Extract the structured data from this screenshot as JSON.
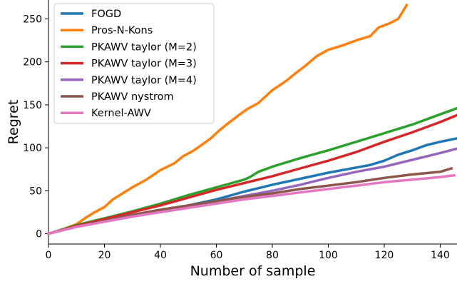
{
  "chart_data": {
    "type": "line",
    "xlabel": "Number of sample",
    "ylabel": "Regret",
    "xlim": [
      0,
      146
    ],
    "ylim": [
      -12,
      272
    ],
    "xticks": [
      0,
      20,
      40,
      60,
      80,
      100,
      120,
      140
    ],
    "yticks": [
      0,
      50,
      100,
      150,
      200,
      250
    ],
    "grid": false,
    "legend_position": "top-left",
    "series": [
      {
        "name": "FOGD",
        "color": "#1f77b4",
        "points": [
          [
            0,
            0
          ],
          [
            10,
            9
          ],
          [
            20,
            15
          ],
          [
            30,
            21
          ],
          [
            40,
            27
          ],
          [
            50,
            33
          ],
          [
            60,
            40
          ],
          [
            70,
            49
          ],
          [
            80,
            57
          ],
          [
            90,
            64
          ],
          [
            100,
            71
          ],
          [
            110,
            77
          ],
          [
            115,
            80
          ],
          [
            120,
            85
          ],
          [
            125,
            92
          ],
          [
            130,
            97
          ],
          [
            135,
            103
          ],
          [
            140,
            107
          ],
          [
            146,
            111
          ]
        ]
      },
      {
        "name": "Pros-N-Kons",
        "color": "#ff7f0e",
        "points": [
          [
            0,
            0
          ],
          [
            5,
            5
          ],
          [
            10,
            11
          ],
          [
            13,
            18
          ],
          [
            16,
            24
          ],
          [
            20,
            31
          ],
          [
            23,
            40
          ],
          [
            27,
            48
          ],
          [
            30,
            54
          ],
          [
            35,
            63
          ],
          [
            40,
            74
          ],
          [
            45,
            82
          ],
          [
            48,
            90
          ],
          [
            52,
            97
          ],
          [
            55,
            104
          ],
          [
            58,
            111
          ],
          [
            61,
            120
          ],
          [
            64,
            128
          ],
          [
            68,
            138
          ],
          [
            71,
            145
          ],
          [
            75,
            152
          ],
          [
            80,
            167
          ],
          [
            85,
            178
          ],
          [
            88,
            186
          ],
          [
            92,
            196
          ],
          [
            96,
            207
          ],
          [
            100,
            214
          ],
          [
            105,
            219
          ],
          [
            110,
            225
          ],
          [
            115,
            230
          ],
          [
            118,
            240
          ],
          [
            122,
            245
          ],
          [
            125,
            250
          ],
          [
            128,
            266
          ]
        ]
      },
      {
        "name": "PKAWV taylor (M=2)",
        "color": "#2ca02c",
        "points": [
          [
            0,
            0
          ],
          [
            10,
            10
          ],
          [
            20,
            18
          ],
          [
            30,
            26
          ],
          [
            40,
            35
          ],
          [
            50,
            45
          ],
          [
            60,
            54
          ],
          [
            70,
            63
          ],
          [
            72,
            66
          ],
          [
            75,
            72
          ],
          [
            80,
            78
          ],
          [
            90,
            88
          ],
          [
            100,
            97
          ],
          [
            110,
            107
          ],
          [
            120,
            117
          ],
          [
            130,
            127
          ],
          [
            140,
            139
          ],
          [
            146,
            146
          ]
        ]
      },
      {
        "name": "PKAWV taylor (M=3)",
        "color": "#d62728",
        "points": [
          [
            0,
            0
          ],
          [
            10,
            9
          ],
          [
            20,
            17
          ],
          [
            30,
            25
          ],
          [
            40,
            33
          ],
          [
            50,
            42
          ],
          [
            60,
            51
          ],
          [
            70,
            59
          ],
          [
            80,
            67
          ],
          [
            90,
            76
          ],
          [
            100,
            85
          ],
          [
            110,
            95
          ],
          [
            120,
            107
          ],
          [
            130,
            118
          ],
          [
            140,
            130
          ],
          [
            146,
            138
          ]
        ]
      },
      {
        "name": "PKAWV taylor (M=4)",
        "color": "#9467bd",
        "points": [
          [
            0,
            0
          ],
          [
            10,
            8
          ],
          [
            20,
            14
          ],
          [
            30,
            20
          ],
          [
            40,
            26
          ],
          [
            50,
            32
          ],
          [
            60,
            38
          ],
          [
            70,
            44
          ],
          [
            80,
            50
          ],
          [
            90,
            57
          ],
          [
            100,
            65
          ],
          [
            110,
            72
          ],
          [
            120,
            78
          ],
          [
            130,
            86
          ],
          [
            140,
            94
          ],
          [
            146,
            99
          ]
        ]
      },
      {
        "name": "PKAWV nystrom",
        "color": "#8c564b",
        "points": [
          [
            0,
            0
          ],
          [
            10,
            8
          ],
          [
            20,
            15
          ],
          [
            30,
            22
          ],
          [
            40,
            28
          ],
          [
            50,
            33
          ],
          [
            60,
            38
          ],
          [
            70,
            43
          ],
          [
            80,
            47
          ],
          [
            90,
            52
          ],
          [
            100,
            56
          ],
          [
            110,
            60
          ],
          [
            120,
            65
          ],
          [
            130,
            69
          ],
          [
            140,
            72
          ],
          [
            144,
            76
          ]
        ]
      },
      {
        "name": "Kernel-AWV",
        "color": "#e377c2",
        "points": [
          [
            0,
            0
          ],
          [
            10,
            8
          ],
          [
            20,
            14
          ],
          [
            30,
            20
          ],
          [
            40,
            25
          ],
          [
            50,
            30
          ],
          [
            60,
            35
          ],
          [
            70,
            40
          ],
          [
            80,
            44
          ],
          [
            90,
            48
          ],
          [
            100,
            52
          ],
          [
            110,
            56
          ],
          [
            120,
            60
          ],
          [
            130,
            63
          ],
          [
            140,
            66
          ],
          [
            145,
            68
          ]
        ]
      }
    ]
  }
}
